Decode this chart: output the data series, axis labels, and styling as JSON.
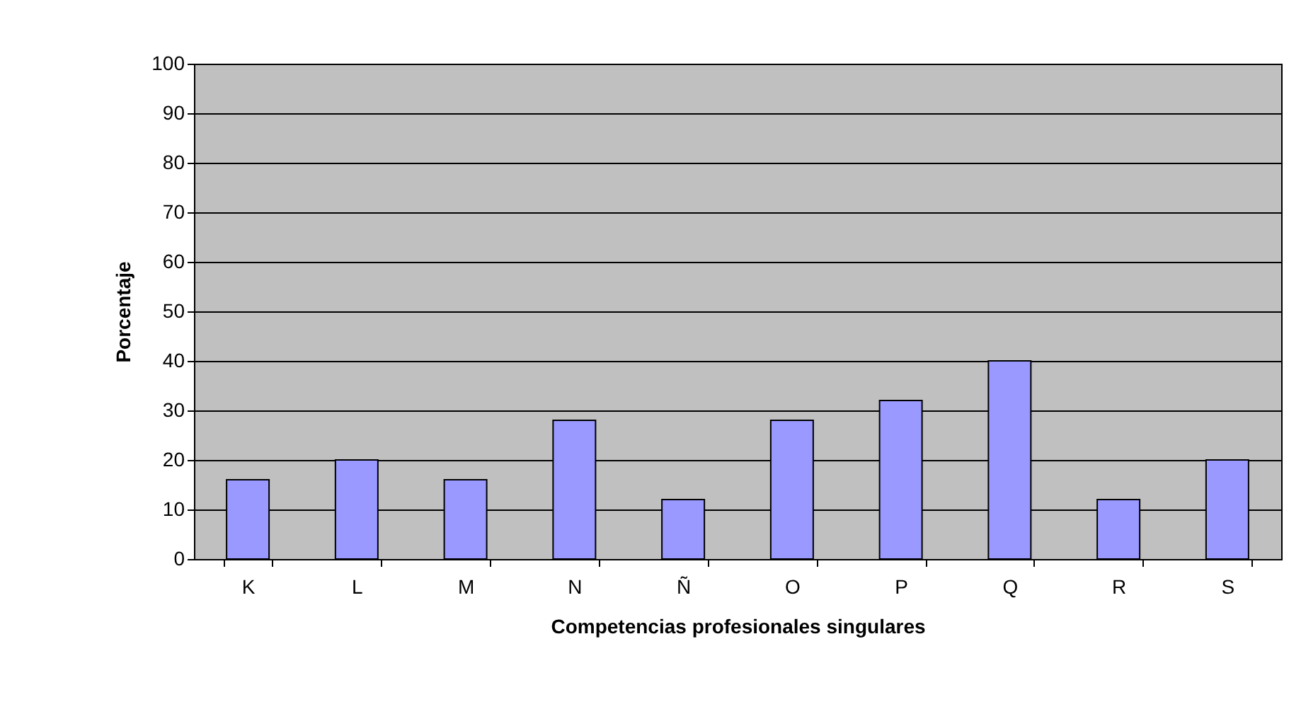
{
  "chart_data": {
    "type": "bar",
    "xlabel": "Competencias profesionales singulares",
    "ylabel": "Porcentaje",
    "categories": [
      "K",
      "L",
      "M",
      "N",
      "Ñ",
      "O",
      "P",
      "Q",
      "R",
      "S"
    ],
    "values": [
      16,
      20,
      16,
      28,
      12,
      28,
      32,
      40,
      12,
      20
    ],
    "color": "#9999ff",
    "ylim": [
      0,
      100
    ],
    "yticks": [
      0,
      10,
      20,
      30,
      40,
      50,
      60,
      70,
      80,
      90,
      100
    ],
    "grid": "y"
  }
}
